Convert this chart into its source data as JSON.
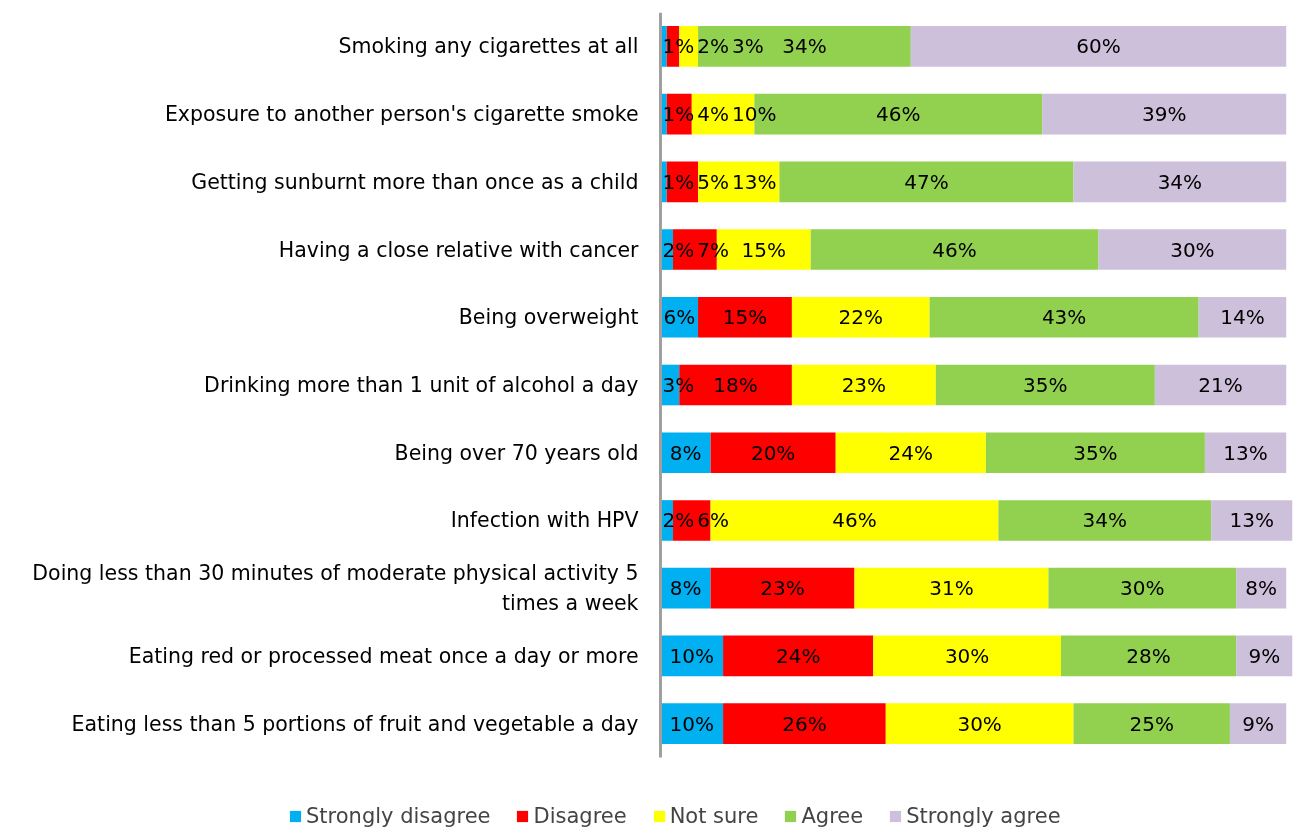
{
  "chart_data": {
    "type": "bar",
    "orientation": "horizontal",
    "stacked": true,
    "legend": "bottom",
    "categories": [
      "Smoking any cigarettes at all",
      "Exposure to another person's cigarette smoke",
      "Getting sunburnt more than once as a child",
      "Having a close relative with cancer",
      "Being overweight",
      "Drinking more than 1 unit of alcohol a day",
      "Being over 70 years old",
      "Infection with HPV",
      "Doing less than 30 minutes of moderate physical activity 5 times a week",
      "Eating red or processed meat once a day or more",
      "Eating less than 5 portions of fruit and vegetable a day"
    ],
    "series": [
      {
        "name": "Strongly disagree",
        "color": "#00b0f0",
        "values": [
          1,
          1,
          1,
          2,
          6,
          3,
          8,
          2,
          8,
          10,
          10
        ],
        "value_labels": [
          "1%",
          "1%",
          "1%",
          "2%",
          "6%",
          "3%",
          "8%",
          "2%",
          "8%",
          "10%",
          "10%"
        ]
      },
      {
        "name": "Disagree",
        "color": "#ff0000",
        "values": [
          2,
          4,
          5,
          7,
          15,
          18,
          20,
          6,
          23,
          24,
          26
        ],
        "value_labels": [
          "2%",
          "4%",
          "5%",
          "7%",
          "15%",
          "18%",
          "20%",
          "6%",
          "23%",
          "24%",
          "26%"
        ]
      },
      {
        "name": "Not sure",
        "color": "#ffff00",
        "values": [
          3,
          10,
          13,
          15,
          22,
          23,
          24,
          46,
          31,
          30,
          30
        ],
        "value_labels": [
          "3%",
          "10%",
          "13%",
          "15%",
          "22%",
          "23%",
          "24%",
          "46%",
          "31%",
          "30%",
          "30%"
        ]
      },
      {
        "name": "Agree",
        "color": "#92d050",
        "values": [
          34,
          46,
          47,
          46,
          43,
          35,
          35,
          34,
          30,
          28,
          25
        ],
        "value_labels": [
          "34%",
          "46%",
          "47%",
          "46%",
          "43%",
          "35%",
          "35%",
          "34%",
          "30%",
          "28%",
          "25%"
        ]
      },
      {
        "name": "Strongly agree",
        "color": "#ccc0da",
        "values": [
          60,
          39,
          34,
          30,
          14,
          21,
          13,
          13,
          8,
          9,
          9
        ],
        "value_labels": [
          "60%",
          "39%",
          "34%",
          "30%",
          "14%",
          "21%",
          "13%",
          "13%",
          "8%",
          "9%",
          "9%"
        ]
      }
    ]
  }
}
